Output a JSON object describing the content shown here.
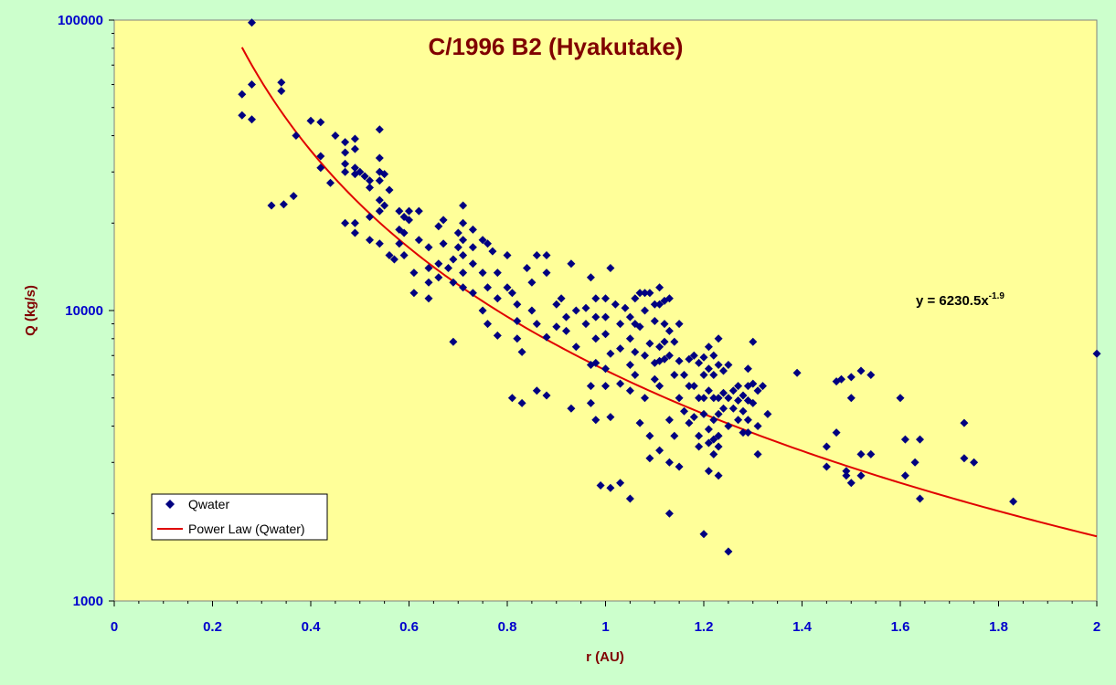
{
  "chart_data": {
    "type": "scatter",
    "title": "C/1996 B2 (Hyakutake)",
    "xlabel": "r (AU)",
    "ylabel": "Q (kg/s)",
    "xlim": [
      0,
      2
    ],
    "ylim": [
      1000,
      100000
    ],
    "yscale": "log",
    "x_ticks": [
      "0",
      "0.2",
      "0.4",
      "0.6",
      "0.8",
      "1",
      "1.2",
      "1.4",
      "1.6",
      "1.8",
      "2"
    ],
    "y_ticks": [
      "1000",
      "10000",
      "100000"
    ],
    "grid": false,
    "legend_position": "bottom-left",
    "colors": {
      "figure_background": "#ccffcc",
      "plot_background": "#ffff99",
      "marker": "#000080",
      "fit_line": "#e00000",
      "title": "#800000",
      "tick_labels": "#0000cc"
    },
    "series": [
      {
        "name": "Qwater",
        "marker": "diamond",
        "points": [
          [
            0.26,
            55500
          ],
          [
            0.26,
            47000
          ],
          [
            0.28,
            98000
          ],
          [
            0.28,
            60000
          ],
          [
            0.28,
            45500
          ],
          [
            0.32,
            23000
          ],
          [
            0.34,
            61000
          ],
          [
            0.34,
            57000
          ],
          [
            0.345,
            23200
          ],
          [
            0.365,
            24800
          ],
          [
            0.37,
            40000
          ],
          [
            0.4,
            45000
          ],
          [
            0.42,
            44500
          ],
          [
            0.42,
            34000
          ],
          [
            0.42,
            31000
          ],
          [
            0.44,
            27500
          ],
          [
            0.45,
            40000
          ],
          [
            0.47,
            38000
          ],
          [
            0.47,
            35000
          ],
          [
            0.47,
            32000
          ],
          [
            0.47,
            30000
          ],
          [
            0.47,
            20000
          ],
          [
            0.49,
            39000
          ],
          [
            0.49,
            36000
          ],
          [
            0.49,
            31000
          ],
          [
            0.49,
            29500
          ],
          [
            0.49,
            20000
          ],
          [
            0.49,
            18500
          ],
          [
            0.5,
            30000
          ],
          [
            0.51,
            29000
          ],
          [
            0.52,
            28000
          ],
          [
            0.52,
            26500
          ],
          [
            0.52,
            21000
          ],
          [
            0.52,
            17500
          ],
          [
            0.54,
            42000
          ],
          [
            0.54,
            33500
          ],
          [
            0.54,
            30000
          ],
          [
            0.54,
            28000
          ],
          [
            0.54,
            24000
          ],
          [
            0.54,
            22000
          ],
          [
            0.54,
            17000
          ],
          [
            0.55,
            29500
          ],
          [
            0.55,
            23000
          ],
          [
            0.56,
            26000
          ],
          [
            0.56,
            15500
          ],
          [
            0.57,
            15000
          ],
          [
            0.58,
            22000
          ],
          [
            0.58,
            19000
          ],
          [
            0.58,
            17000
          ],
          [
            0.59,
            21000
          ],
          [
            0.59,
            18500
          ],
          [
            0.59,
            15500
          ],
          [
            0.6,
            22000
          ],
          [
            0.6,
            20500
          ],
          [
            0.61,
            13500
          ],
          [
            0.61,
            11500
          ],
          [
            0.62,
            22000
          ],
          [
            0.62,
            17500
          ],
          [
            0.64,
            14000
          ],
          [
            0.64,
            12500
          ],
          [
            0.64,
            16500
          ],
          [
            0.64,
            11000
          ],
          [
            0.66,
            14500
          ],
          [
            0.66,
            13000
          ],
          [
            0.66,
            19500
          ],
          [
            0.67,
            20500
          ],
          [
            0.67,
            17000
          ],
          [
            0.68,
            14000
          ],
          [
            0.69,
            15000
          ],
          [
            0.69,
            12500
          ],
          [
            0.69,
            7800
          ],
          [
            0.7,
            18500
          ],
          [
            0.7,
            16500
          ],
          [
            0.71,
            23000
          ],
          [
            0.71,
            20000
          ],
          [
            0.71,
            17500
          ],
          [
            0.71,
            15500
          ],
          [
            0.71,
            13500
          ],
          [
            0.71,
            12000
          ],
          [
            0.73,
            19000
          ],
          [
            0.73,
            16500
          ],
          [
            0.73,
            14500
          ],
          [
            0.73,
            11500
          ],
          [
            0.75,
            17500
          ],
          [
            0.75,
            13500
          ],
          [
            0.75,
            10000
          ],
          [
            0.76,
            17000
          ],
          [
            0.76,
            12000
          ],
          [
            0.76,
            9000
          ],
          [
            0.77,
            16000
          ],
          [
            0.78,
            13500
          ],
          [
            0.78,
            11000
          ],
          [
            0.78,
            8200
          ],
          [
            0.8,
            15500
          ],
          [
            0.8,
            12000
          ],
          [
            0.81,
            11500
          ],
          [
            0.81,
            5000
          ],
          [
            0.82,
            10500
          ],
          [
            0.82,
            9200
          ],
          [
            0.82,
            8000
          ],
          [
            0.83,
            7200
          ],
          [
            0.83,
            4800
          ],
          [
            0.84,
            14000
          ],
          [
            0.85,
            12500
          ],
          [
            0.85,
            10000
          ],
          [
            0.86,
            15500
          ],
          [
            0.86,
            9000
          ],
          [
            0.86,
            5300
          ],
          [
            0.88,
            15500
          ],
          [
            0.88,
            13500
          ],
          [
            0.88,
            8100
          ],
          [
            0.88,
            5100
          ],
          [
            0.9,
            10500
          ],
          [
            0.9,
            8800
          ],
          [
            0.91,
            11000
          ],
          [
            0.92,
            9500
          ],
          [
            0.92,
            8500
          ],
          [
            0.93,
            14500
          ],
          [
            0.93,
            4600
          ],
          [
            0.94,
            10000
          ],
          [
            0.94,
            7500
          ],
          [
            0.96,
            10200
          ],
          [
            0.96,
            9000
          ],
          [
            0.97,
            13000
          ],
          [
            0.97,
            6500
          ],
          [
            0.97,
            5500
          ],
          [
            0.97,
            4800
          ],
          [
            0.98,
            11000
          ],
          [
            0.98,
            9500
          ],
          [
            0.98,
            8000
          ],
          [
            0.98,
            6600
          ],
          [
            0.98,
            4200
          ],
          [
            0.99,
            2500
          ],
          [
            1.0,
            11000
          ],
          [
            1.0,
            9500
          ],
          [
            1.0,
            8300
          ],
          [
            1.0,
            6300
          ],
          [
            1.0,
            5500
          ],
          [
            1.01,
            14000
          ],
          [
            1.01,
            7100
          ],
          [
            1.01,
            4300
          ],
          [
            1.01,
            2450
          ],
          [
            1.02,
            10500
          ],
          [
            1.03,
            9000
          ],
          [
            1.03,
            7400
          ],
          [
            1.03,
            5600
          ],
          [
            1.03,
            2550
          ],
          [
            1.04,
            10200
          ],
          [
            1.05,
            9500
          ],
          [
            1.05,
            8000
          ],
          [
            1.05,
            6500
          ],
          [
            1.05,
            5300
          ],
          [
            1.05,
            2250
          ],
          [
            1.06,
            11000
          ],
          [
            1.06,
            9000
          ],
          [
            1.06,
            7200
          ],
          [
            1.06,
            6000
          ],
          [
            1.07,
            11500
          ],
          [
            1.07,
            8800
          ],
          [
            1.07,
            4100
          ],
          [
            1.08,
            11500
          ],
          [
            1.08,
            10000
          ],
          [
            1.08,
            7000
          ],
          [
            1.08,
            5000
          ],
          [
            1.09,
            11500
          ],
          [
            1.09,
            7700
          ],
          [
            1.09,
            3700
          ],
          [
            1.09,
            3100
          ],
          [
            1.1,
            10500
          ],
          [
            1.1,
            9200
          ],
          [
            1.1,
            6600
          ],
          [
            1.1,
            5800
          ],
          [
            1.11,
            12000
          ],
          [
            1.11,
            10500
          ],
          [
            1.11,
            7500
          ],
          [
            1.11,
            6700
          ],
          [
            1.11,
            5500
          ],
          [
            1.11,
            3300
          ],
          [
            1.12,
            10800
          ],
          [
            1.12,
            9000
          ],
          [
            1.12,
            7800
          ],
          [
            1.12,
            6800
          ],
          [
            1.13,
            11000
          ],
          [
            1.13,
            8500
          ],
          [
            1.13,
            7000
          ],
          [
            1.13,
            4200
          ],
          [
            1.13,
            3000
          ],
          [
            1.13,
            2000
          ],
          [
            1.14,
            7800
          ],
          [
            1.14,
            6000
          ],
          [
            1.14,
            3700
          ],
          [
            1.15,
            9000
          ],
          [
            1.15,
            6700
          ],
          [
            1.15,
            5000
          ],
          [
            1.15,
            2900
          ],
          [
            1.16,
            6000
          ],
          [
            1.16,
            4500
          ],
          [
            1.17,
            6800
          ],
          [
            1.17,
            5500
          ],
          [
            1.17,
            4100
          ],
          [
            1.18,
            7000
          ],
          [
            1.18,
            5500
          ],
          [
            1.18,
            4300
          ],
          [
            1.19,
            6600
          ],
          [
            1.19,
            5000
          ],
          [
            1.19,
            3700
          ],
          [
            1.19,
            3400
          ],
          [
            1.2,
            6900
          ],
          [
            1.2,
            6000
          ],
          [
            1.2,
            5000
          ],
          [
            1.2,
            4400
          ],
          [
            1.2,
            1700
          ],
          [
            1.21,
            7500
          ],
          [
            1.21,
            6300
          ],
          [
            1.21,
            5300
          ],
          [
            1.21,
            3900
          ],
          [
            1.21,
            3500
          ],
          [
            1.21,
            2800
          ],
          [
            1.22,
            7000
          ],
          [
            1.22,
            6000
          ],
          [
            1.22,
            5000
          ],
          [
            1.22,
            4200
          ],
          [
            1.22,
            3600
          ],
          [
            1.22,
            3200
          ],
          [
            1.23,
            8000
          ],
          [
            1.23,
            6500
          ],
          [
            1.23,
            5000
          ],
          [
            1.23,
            4400
          ],
          [
            1.23,
            3700
          ],
          [
            1.23,
            3400
          ],
          [
            1.23,
            2700
          ],
          [
            1.24,
            6200
          ],
          [
            1.24,
            5200
          ],
          [
            1.24,
            4600
          ],
          [
            1.25,
            6500
          ],
          [
            1.25,
            5000
          ],
          [
            1.25,
            4000
          ],
          [
            1.25,
            1480
          ],
          [
            1.26,
            5300
          ],
          [
            1.26,
            4600
          ],
          [
            1.27,
            5500
          ],
          [
            1.27,
            4900
          ],
          [
            1.27,
            4200
          ],
          [
            1.28,
            5100
          ],
          [
            1.28,
            4500
          ],
          [
            1.28,
            3800
          ],
          [
            1.29,
            6300
          ],
          [
            1.29,
            5500
          ],
          [
            1.29,
            4900
          ],
          [
            1.29,
            4200
          ],
          [
            1.29,
            3800
          ],
          [
            1.3,
            7800
          ],
          [
            1.3,
            5600
          ],
          [
            1.3,
            4800
          ],
          [
            1.31,
            5300
          ],
          [
            1.31,
            4000
          ],
          [
            1.31,
            3200
          ],
          [
            1.32,
            5500
          ],
          [
            1.33,
            4400
          ],
          [
            1.39,
            6100
          ],
          [
            1.45,
            3400
          ],
          [
            1.45,
            2900
          ],
          [
            1.47,
            5700
          ],
          [
            1.47,
            3800
          ],
          [
            1.48,
            5800
          ],
          [
            1.49,
            2800
          ],
          [
            1.49,
            2700
          ],
          [
            1.5,
            5900
          ],
          [
            1.5,
            5000
          ],
          [
            1.5,
            2550
          ],
          [
            1.52,
            6200
          ],
          [
            1.52,
            3200
          ],
          [
            1.52,
            2700
          ],
          [
            1.54,
            6000
          ],
          [
            1.54,
            3200
          ],
          [
            1.6,
            5000
          ],
          [
            1.61,
            3600
          ],
          [
            1.61,
            2700
          ],
          [
            1.63,
            3000
          ],
          [
            1.64,
            3600
          ],
          [
            1.64,
            2250
          ],
          [
            1.73,
            4100
          ],
          [
            1.73,
            3100
          ],
          [
            1.75,
            3000
          ],
          [
            1.83,
            2200
          ],
          [
            2.0,
            7100
          ]
        ]
      }
    ],
    "fit": {
      "name": "Power Law (Qwater)",
      "coefficient": 6230.5,
      "exponent": -1.9,
      "x_range": [
        0.26,
        2.0
      ],
      "equation_text": "y = 6230.5x",
      "equation_exponent_text": "-1.9"
    }
  }
}
